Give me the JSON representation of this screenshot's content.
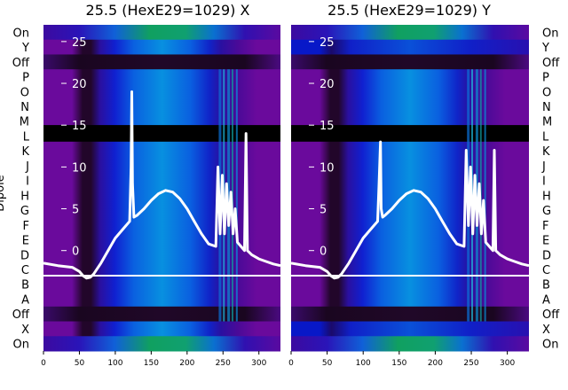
{
  "chart_data": [
    {
      "type": "heatmap",
      "title": "25.5 (HexE29=1029) X",
      "channel": "X",
      "xlim": [
        0,
        330
      ],
      "x_ticks": [
        0,
        50,
        100,
        150,
        200,
        250,
        300
      ],
      "overlay_ylim": [
        -3,
        27
      ],
      "overlay_ticks": [
        0,
        5,
        10,
        15,
        20,
        25
      ],
      "hline_y": -3,
      "curve": {
        "color": "#ffffff",
        "x": [
          0,
          20,
          40,
          50,
          55,
          60,
          65,
          70,
          80,
          90,
          100,
          110,
          120,
          122,
          123,
          124,
          126,
          130,
          140,
          150,
          160,
          170,
          180,
          190,
          200,
          210,
          220,
          230,
          240,
          243,
          246,
          249,
          252,
          255,
          258,
          261,
          264,
          267,
          270,
          275,
          280,
          282,
          284,
          290,
          300,
          310,
          320,
          330
        ],
        "y": [
          -1.5,
          -1.8,
          -2,
          -2.5,
          -3,
          -3.3,
          -3.2,
          -2.8,
          -1.5,
          0,
          1.5,
          2.5,
          3.5,
          10,
          19,
          8,
          4,
          4.2,
          5,
          6,
          6.8,
          7.2,
          7.0,
          6.2,
          5,
          3.5,
          2,
          0.8,
          0.5,
          10,
          2,
          9,
          2,
          8,
          3,
          7,
          2,
          5,
          1,
          0.5,
          0,
          14,
          0,
          -0.5,
          -1,
          -1.3,
          -1.6,
          -1.8
        ]
      }
    },
    {
      "type": "heatmap",
      "title": "25.5 (HexE29=1029) Y",
      "channel": "Y",
      "xlim": [
        0,
        330
      ],
      "x_ticks": [
        0,
        50,
        100,
        150,
        200,
        250,
        300
      ],
      "overlay_ylim": [
        -3,
        27
      ],
      "overlay_ticks": [
        0,
        5,
        10,
        15,
        20,
        25
      ],
      "hline_y": -3,
      "curve": {
        "color": "#ffffff",
        "x": [
          0,
          20,
          40,
          50,
          55,
          60,
          65,
          70,
          80,
          90,
          100,
          110,
          120,
          122,
          124,
          125,
          127,
          130,
          140,
          150,
          160,
          170,
          180,
          190,
          200,
          210,
          220,
          230,
          240,
          243,
          246,
          249,
          252,
          255,
          258,
          261,
          264,
          267,
          270,
          275,
          280,
          282,
          284,
          290,
          300,
          310,
          320,
          330
        ],
        "y": [
          -1.5,
          -1.8,
          -2,
          -2.5,
          -3,
          -3.3,
          -3.2,
          -2.8,
          -1.5,
          0,
          1.5,
          2.5,
          3.5,
          8,
          13,
          5,
          4,
          4.2,
          5,
          6,
          6.8,
          7.2,
          7.0,
          6.2,
          5,
          3.5,
          2,
          0.8,
          0.5,
          12,
          3,
          10,
          2,
          9,
          3,
          8,
          2,
          6,
          1,
          0.5,
          0,
          12,
          0,
          -0.5,
          -1,
          -1.3,
          -1.6,
          -1.8
        ]
      }
    }
  ],
  "bands": {
    "labels": [
      "On",
      "Y",
      "Off",
      "P",
      "O",
      "N",
      "M",
      "L",
      "K",
      "J",
      "I",
      "H",
      "G",
      "F",
      "E",
      "D",
      "C",
      "B",
      "A",
      "Off",
      "X",
      "On"
    ],
    "y_axis_label": "Dipole"
  },
  "colors": {
    "purple": "#6a0a9c",
    "dark": "#1a0620",
    "blue": "#1020d8",
    "cyan": "#0890e0",
    "green": "#10a060",
    "black_band": "#000000",
    "overlay_line": "#ffffff"
  }
}
